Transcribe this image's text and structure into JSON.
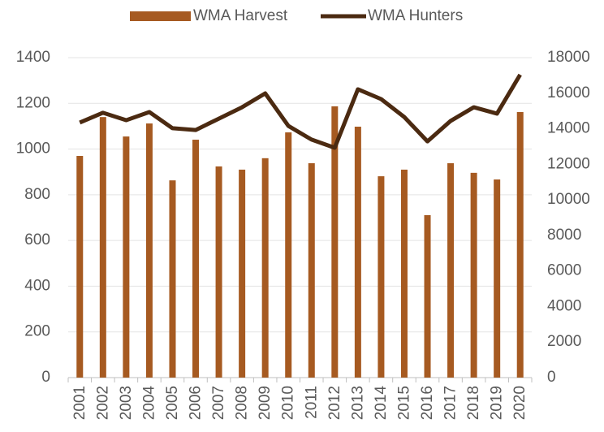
{
  "chart_data": {
    "type": "bar_line",
    "categories": [
      "2001",
      "2002",
      "2003",
      "2004",
      "2005",
      "2006",
      "2007",
      "2008",
      "2009",
      "2010",
      "2011",
      "2012",
      "2013",
      "2014",
      "2015",
      "2016",
      "2017",
      "2018",
      "2019",
      "2020"
    ],
    "series": [
      {
        "name": "WMA Harvest",
        "type": "bar",
        "color": "#a65a21",
        "values": [
          970,
          1140,
          1055,
          1112,
          863,
          1041,
          924,
          910,
          960,
          1073,
          938,
          1187,
          1098,
          881,
          910,
          711,
          938,
          896,
          867,
          1162
        ]
      },
      {
        "name": "WMA Hunters",
        "type": "line",
        "axis": "y2",
        "color": "#4b2a11",
        "values": [
          14350,
          14900,
          14480,
          14940,
          14030,
          13930,
          14570,
          15210,
          15990,
          14160,
          13390,
          12930,
          16220,
          15670,
          14660,
          13290,
          14440,
          15210,
          14850,
          17040
        ]
      }
    ],
    "ylim": [
      0,
      1400
    ],
    "yticks": [
      0,
      200,
      400,
      600,
      800,
      1000,
      1200,
      1400
    ],
    "y2lim": [
      0,
      18000
    ],
    "y2ticks": [
      0,
      2000,
      4000,
      6000,
      8000,
      10000,
      12000,
      14000,
      16000,
      18000
    ],
    "grid": true,
    "legend": "top"
  }
}
